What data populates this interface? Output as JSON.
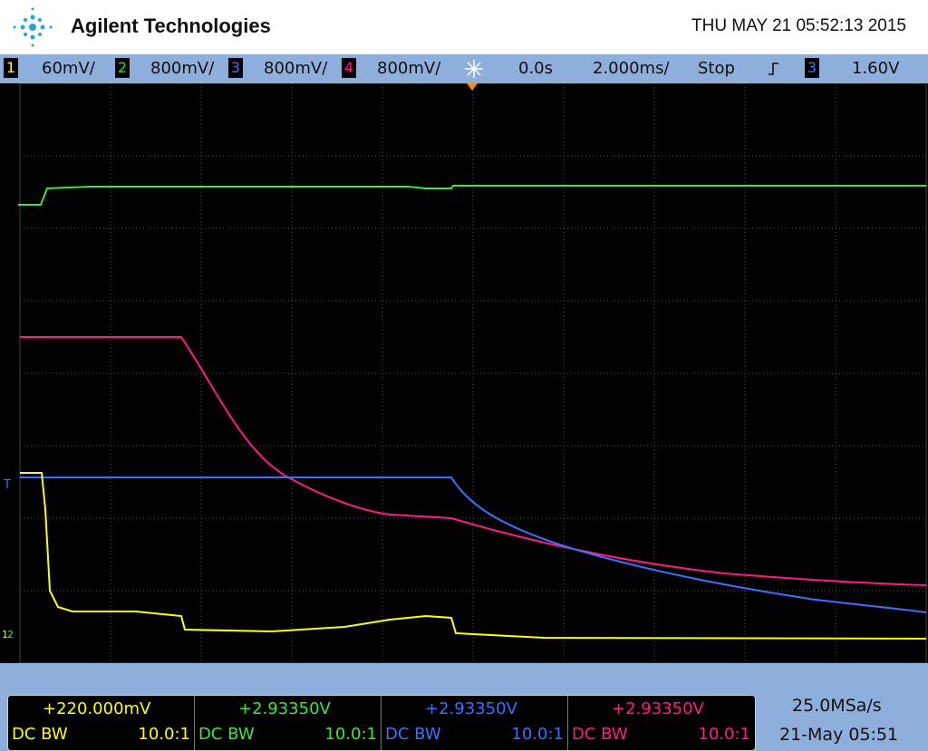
{
  "header": {
    "brand": "Agilent Technologies",
    "datetime": "THU MAY 21 05:52:13 2015"
  },
  "channels": [
    {
      "number": "1",
      "scale": "60mV/",
      "color": "#ffff00"
    },
    {
      "number": "2",
      "scale": "800mV/",
      "color": "#00ff00"
    },
    {
      "number": "3",
      "scale": "800mV/",
      "color": "#3f6fff"
    },
    {
      "number": "4",
      "scale": "800mV/",
      "color": "#ff1a8c"
    }
  ],
  "timebase": {
    "delay": "0.0s",
    "scale": "2.000ms/",
    "status": "Stop"
  },
  "trigger": {
    "channel": "3",
    "level": "1.60V",
    "marker": "T"
  },
  "ground_markers": [
    "1",
    "2"
  ],
  "footer": {
    "channels": [
      {
        "offset": "+220.000mV",
        "coupling": "DC BW",
        "probe": "10.0:1"
      },
      {
        "offset": "+2.93350V",
        "coupling": "DC BW",
        "probe": "10.0:1"
      },
      {
        "offset": "+2.93350V",
        "coupling": "DC BW",
        "probe": "10.0:1"
      },
      {
        "offset": "+2.93350V",
        "coupling": "DC BW",
        "probe": "10.0:1"
      }
    ],
    "sample_rate": "25.0MSa/s",
    "date": "21-May 05:51"
  }
}
